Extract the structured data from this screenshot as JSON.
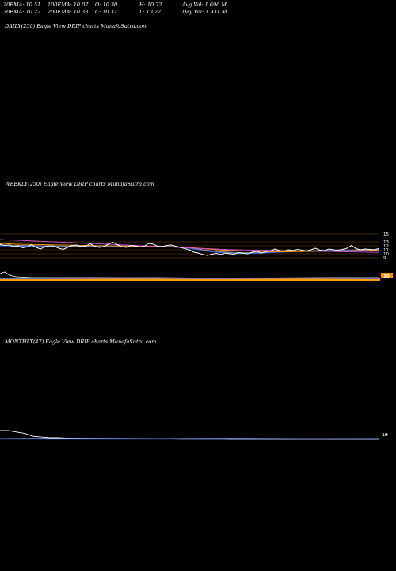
{
  "stats": {
    "ema20": "20EMA: 10.51",
    "ema100": "100EMA: 10.07",
    "open": "O: 10.30",
    "high": "H: 10.72",
    "avgvol": "Avg Vol: 1.696  M",
    "ema30": "30EMA: 10.22",
    "ema200": "200EMA: 10.33",
    "close": "C: 10.32",
    "low": "L: 10.22",
    "dayvol": "Day Vol: 1.931  M"
  },
  "panels": {
    "daily": "DAILY(250) Eagle   View  DRIP charts MunafaSutra.com",
    "weekly": "WEEKLY(250) Eagle   View  DRIP charts MunafaSutra.com",
    "monthly": "MONTHLY(47) Eagle   View  DRIP charts MunafaSutra.com"
  },
  "colors": {
    "price": "#ffffff",
    "ema_magenta": "#d050d0",
    "ema_orange": "#ff9900",
    "ema_blue": "#3366ff",
    "ema_gray": "#999999",
    "volume_orange": "#ff9900",
    "badge_orange": "#ff8800"
  },
  "chart_data": [
    {
      "type": "line",
      "panel": "weekly",
      "ylim": [
        8,
        16
      ],
      "yticks": [
        "15",
        "13",
        "12",
        "11",
        "10",
        "9"
      ],
      "yticks_values": [
        15,
        13,
        12,
        11,
        10,
        9
      ],
      "series": [
        {
          "values": [
            12.4,
            12.1,
            12.2,
            11.8,
            12.0,
            11.5,
            11.7,
            12.3,
            11.6,
            11.2,
            11.8,
            12.0,
            11.9,
            11.4,
            11.1,
            11.6,
            12.1,
            12.2,
            11.8,
            11.9,
            12.5,
            11.9,
            11.6,
            11.8,
            12.4,
            12.9,
            12.3,
            11.8,
            11.6,
            12.1,
            12.0,
            11.7,
            11.9,
            12.6,
            12.4,
            11.9,
            11.8,
            12.1,
            12.2,
            11.9,
            11.6,
            11.3,
            11.0,
            10.4,
            10.2,
            9.8,
            9.6,
            9.9,
            10.1,
            9.8,
            10.2,
            10.0,
            9.9,
            10.3,
            10.1,
            10.0,
            10.4,
            10.6,
            10.2,
            10.5,
            10.7,
            11.2,
            10.8,
            10.6,
            11.0,
            10.8,
            11.1,
            10.9,
            10.7,
            11.0,
            11.4,
            10.9,
            10.8,
            11.2,
            11.0,
            10.9,
            11.1,
            11.4,
            12.1,
            11.3,
            11.0,
            11.2,
            11.1,
            11.0,
            11.3
          ]
        },
        {
          "values": [
            13.6,
            13.55,
            13.5,
            13.45,
            13.4,
            13.35,
            13.3,
            13.25,
            13.2,
            13.15,
            13.1,
            13.05,
            13.0,
            12.95,
            12.9,
            12.85,
            12.8,
            12.75,
            12.7,
            12.65,
            12.6,
            12.55,
            12.5,
            12.45,
            12.4,
            12.35,
            12.3,
            12.25,
            12.2,
            12.15,
            12.1,
            12.05,
            12.0,
            11.95,
            11.9,
            11.85,
            11.8,
            11.75,
            11.7,
            11.65,
            11.6,
            11.55,
            11.5,
            11.45,
            11.4,
            11.35,
            11.3,
            11.25,
            11.2,
            11.15,
            11.1,
            11.05,
            11.0,
            10.98,
            10.96,
            10.94,
            10.92,
            10.9,
            10.88,
            10.86,
            10.84,
            10.82,
            10.8,
            10.78,
            10.76,
            10.74,
            10.72,
            10.7,
            10.68,
            10.66,
            10.64,
            10.62,
            10.6,
            10.58,
            10.56,
            10.54,
            10.52,
            10.5,
            10.48,
            10.46,
            10.44,
            10.42,
            10.4,
            10.38,
            10.36
          ]
        },
        {
          "values": [
            12.6,
            12.55,
            12.5,
            12.45,
            12.4,
            12.38,
            12.36,
            12.34,
            12.32,
            12.3,
            12.28,
            12.26,
            12.24,
            12.22,
            12.2,
            12.18,
            12.16,
            12.14,
            12.12,
            12.1,
            12.08,
            12.06,
            12.04,
            12.02,
            12.0,
            11.98,
            11.96,
            11.94,
            11.92,
            11.9,
            11.88,
            11.86,
            11.84,
            11.82,
            11.8,
            11.78,
            11.76,
            11.74,
            11.72,
            11.7,
            11.65,
            11.6,
            11.55,
            11.5,
            11.4,
            11.3,
            11.2,
            11.1,
            11.0,
            10.95,
            10.9,
            10.85,
            10.8,
            10.76,
            10.72,
            10.68,
            10.64,
            10.6,
            10.58,
            10.56,
            10.54,
            10.52,
            10.5,
            10.5,
            10.5,
            10.52,
            10.54,
            10.56,
            10.58,
            10.6,
            10.62,
            10.64,
            10.66,
            10.68,
            10.7,
            10.72,
            10.74,
            10.76,
            10.78,
            10.8,
            10.82,
            10.84,
            10.86,
            10.88,
            10.9
          ]
        },
        {
          "values": [
            12.0,
            11.98,
            11.96,
            11.94,
            11.92,
            11.9,
            11.9,
            11.9,
            11.88,
            11.86,
            11.84,
            11.82,
            11.8,
            11.78,
            11.76,
            11.74,
            11.72,
            11.72,
            11.72,
            11.74,
            11.76,
            11.78,
            11.8,
            11.8,
            11.82,
            11.84,
            11.86,
            11.86,
            11.86,
            11.86,
            11.84,
            11.82,
            11.8,
            11.8,
            11.8,
            11.78,
            11.76,
            11.74,
            11.72,
            11.7,
            11.6,
            11.5,
            11.4,
            11.2,
            11.0,
            10.8,
            10.6,
            10.5,
            10.4,
            10.3,
            10.25,
            10.2,
            10.15,
            10.1,
            10.1,
            10.1,
            10.12,
            10.15,
            10.2,
            10.25,
            10.3,
            10.35,
            10.4,
            10.45,
            10.5,
            10.55,
            10.6,
            10.65,
            10.7,
            10.72,
            10.74,
            10.76,
            10.78,
            10.8,
            10.82,
            10.84,
            10.86,
            10.88,
            10.92,
            10.94,
            10.96,
            10.98,
            11.0,
            11.0,
            11.0
          ]
        },
        {
          "values": [
            12.2,
            12.18,
            12.16,
            12.14,
            12.12,
            12.1,
            12.08,
            12.06,
            12.04,
            12.02,
            12.0,
            11.98,
            11.96,
            11.94,
            11.92,
            11.9,
            11.9,
            11.9,
            11.9,
            11.9,
            11.92,
            11.94,
            11.96,
            11.96,
            11.96,
            11.98,
            12.0,
            12.0,
            11.98,
            11.96,
            11.94,
            11.92,
            11.9,
            11.9,
            11.9,
            11.88,
            11.86,
            11.84,
            11.8,
            11.75,
            11.7,
            11.6,
            11.5,
            11.35,
            11.2,
            11.0,
            10.85,
            10.7,
            10.6,
            10.5,
            10.45,
            10.4,
            10.35,
            10.3,
            10.28,
            10.26,
            10.26,
            10.28,
            10.3,
            10.34,
            10.38,
            10.42,
            10.46,
            10.5,
            10.55,
            10.6,
            10.64,
            10.68,
            10.72,
            10.75,
            10.78,
            10.8,
            10.82,
            10.84,
            10.86,
            10.88,
            10.9,
            10.92,
            10.96,
            10.98,
            11.0,
            11.02,
            11.04,
            11.05,
            11.06
          ]
        }
      ]
    },
    {
      "type": "line",
      "panel": "monthly",
      "series": [
        {
          "values": [
            16,
            16,
            15,
            14,
            12,
            11.5,
            11,
            11,
            10.8,
            10.6,
            10.5,
            10.5,
            10.4,
            10.4,
            10.3,
            10.3,
            10.2,
            10.2,
            10.2,
            10.1,
            10.1,
            10.1,
            10.0,
            10.0,
            10.0,
            10.0,
            10.0,
            10.0,
            9.9,
            9.9,
            9.9,
            9.9,
            9.9,
            9.9,
            9.9,
            9.9,
            9.9,
            9.9,
            9.9,
            9.9,
            9.9,
            9.9,
            9.9,
            9.9,
            9.9,
            9.9,
            9.9
          ]
        }
      ]
    }
  ],
  "badges": {
    "weekly_value": "10",
    "monthly_value": "10"
  }
}
